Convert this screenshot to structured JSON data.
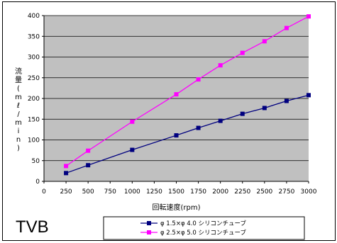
{
  "caption": "TVB",
  "chart_data": {
    "type": "line",
    "xlabel": "回転速度(rpm)",
    "ylabel": "流量(mℓ/min)",
    "xlim": [
      0,
      3000
    ],
    "ylim": [
      0,
      400
    ],
    "x_ticks": [
      0,
      250,
      500,
      750,
      1000,
      1250,
      1500,
      1750,
      2000,
      2250,
      2500,
      2750,
      3000
    ],
    "y_ticks": [
      0,
      50,
      100,
      150,
      200,
      250,
      300,
      350,
      400
    ],
    "grid": true,
    "legend_position": "bottom",
    "series": [
      {
        "name": "φ 1.5×φ 4.0 シリコンチューブ",
        "color": "#00007f",
        "marker": "square",
        "x": [
          250,
          500,
          1000,
          1500,
          1750,
          2000,
          2250,
          2500,
          2750,
          3000
        ],
        "y": [
          20,
          39,
          76,
          111,
          129,
          146,
          163,
          177,
          194,
          208
        ]
      },
      {
        "name": "φ 2.5×φ 5.0 シリコンチューブ",
        "color": "#ff00ff",
        "marker": "square",
        "x": [
          250,
          500,
          1000,
          1500,
          1750,
          2000,
          2250,
          2500,
          2750,
          3000
        ],
        "y": [
          37,
          74,
          144,
          210,
          246,
          280,
          310,
          338,
          370,
          398
        ]
      }
    ]
  }
}
